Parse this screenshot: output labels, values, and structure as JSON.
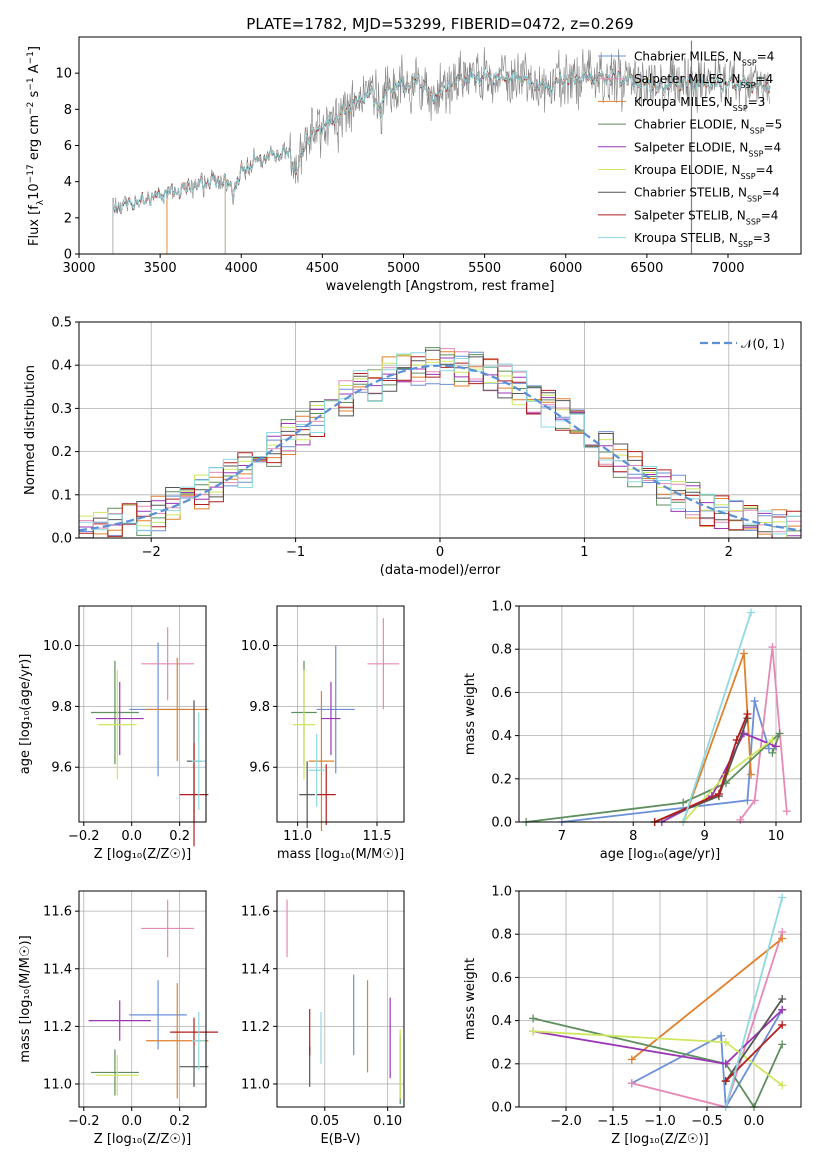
{
  "figure": {
    "title": "PLATE=1782, MJD=53299, FIBERID=0472, z=0.269"
  },
  "colors": {
    "Chabrier MILES": "#6b8fd9",
    "Salpeter MILES": "#e589b7",
    "Kroupa MILES": "#e0802c",
    "Chabrier ELODIE": "#5f8e5f",
    "Salpeter ELODIE": "#9b36b5",
    "Kroupa ELODIE": "#cde85f",
    "Chabrier STELIB": "#555555",
    "Salpeter STELIB": "#b21e1e",
    "Kroupa STELIB": "#8fd9e0",
    "data": "#808080",
    "gauss": "#5b8fd6"
  },
  "chart_data": [
    {
      "type": "line",
      "xlabel": "wavelength [Angstrom, rest frame]",
      "ylabel": "Flux [f_λ10⁻¹⁷ erg cm⁻² s⁻¹ A⁻¹]",
      "xlim": [
        3000,
        7450
      ],
      "ylim": [
        0,
        12
      ],
      "xticks": [
        "3000",
        "3500",
        "4000",
        "4500",
        "5000",
        "5500",
        "6000",
        "6500",
        "7000"
      ],
      "yticks": [
        "0",
        "2",
        "4",
        "6",
        "8",
        "10"
      ],
      "legend_position": "top-right",
      "series_labels": [
        {
          "name": "Chabrier MILES",
          "imf": "Chabrier",
          "lib": "MILES",
          "n": "4"
        },
        {
          "name": "Salpeter MILES",
          "imf": "Salpeter",
          "lib": "MILES",
          "n": "4"
        },
        {
          "name": "Kroupa MILES",
          "imf": "Kroupa",
          "lib": "MILES",
          "n": "3"
        },
        {
          "name": "Chabrier ELODIE",
          "imf": "Chabrier",
          "lib": "ELODIE",
          "n": "5"
        },
        {
          "name": "Salpeter ELODIE",
          "imf": "Salpeter",
          "lib": "ELODIE",
          "n": "4"
        },
        {
          "name": "Kroupa ELODIE",
          "imf": "Kroupa",
          "lib": "ELODIE",
          "n": "4"
        },
        {
          "name": "Chabrier STELIB",
          "imf": "Chabrier",
          "lib": "STELIB",
          "n": "4"
        },
        {
          "name": "Salpeter STELIB",
          "imf": "Salpeter",
          "lib": "STELIB",
          "n": "4"
        },
        {
          "name": "Kroupa STELIB",
          "imf": "Kroupa",
          "lib": "STELIB",
          "n": "3"
        }
      ],
      "model_start_wavelength": {
        "MILES": 3540,
        "ELODIE": 3900,
        "STELIB": 3210
      },
      "spectrum_envelope": [
        [
          3210,
          2.6
        ],
        [
          3400,
          3.0
        ],
        [
          3540,
          3.3
        ],
        [
          3700,
          3.8
        ],
        [
          3900,
          4.1
        ],
        [
          3950,
          3.4
        ],
        [
          4000,
          4.6
        ],
        [
          4100,
          5.2
        ],
        [
          4200,
          5.5
        ],
        [
          4300,
          5.6
        ],
        [
          4340,
          4.4
        ],
        [
          4400,
          6.4
        ],
        [
          4500,
          7.0
        ],
        [
          4600,
          7.7
        ],
        [
          4700,
          8.4
        ],
        [
          4800,
          8.9
        ],
        [
          4860,
          7.9
        ],
        [
          4900,
          9.2
        ],
        [
          5000,
          9.3
        ],
        [
          5100,
          9.6
        ],
        [
          5175,
          8.6
        ],
        [
          5300,
          9.6
        ],
        [
          5500,
          9.8
        ],
        [
          5700,
          9.8
        ],
        [
          5890,
          9.2
        ],
        [
          6000,
          9.7
        ],
        [
          6300,
          9.8
        ],
        [
          6560,
          9.2
        ],
        [
          6700,
          9.5
        ],
        [
          6900,
          9.4
        ],
        [
          7100,
          9.4
        ],
        [
          7260,
          9.3
        ]
      ]
    },
    {
      "type": "line",
      "xlabel": "(data-model)/error",
      "ylabel": "Normed distribution",
      "xlim": [
        -2.5,
        2.5
      ],
      "ylim": [
        0,
        0.5
      ],
      "xticks": [
        "−2",
        "−1",
        "0",
        "1",
        "2"
      ],
      "yticks": [
        "0.0",
        "0.1",
        "0.2",
        "0.3",
        "0.4",
        "0.5"
      ],
      "legend_position": "top-right",
      "legend_label": "𝒩(0, 1)",
      "gaussian": {
        "mu": 0,
        "sigma": 1
      },
      "histogram_bin_width": 0.1
    },
    {
      "type": "scatter",
      "xlabel": "Z [log₁₀(Z/Z☉)]",
      "ylabel": "age  [log₁₀(age/yr)]",
      "xlim": [
        -0.22,
        0.31
      ],
      "ylim": [
        9.42,
        10.13
      ],
      "xticks": [
        "−0.2",
        "0.0",
        "0.2"
      ],
      "yticks": [
        "9.6",
        "9.8",
        "10.0"
      ],
      "points": [
        {
          "model": "Chabrier MILES",
          "x": 0.11,
          "y": 9.79,
          "xerr": 0.12,
          "yerr": 0.22
        },
        {
          "model": "Salpeter MILES",
          "x": 0.15,
          "y": 9.94,
          "xerr": 0.11,
          "yerr": 0.12
        },
        {
          "model": "Kroupa MILES",
          "x": 0.19,
          "y": 9.79,
          "xerr": 0.13,
          "yerr": 0.17
        },
        {
          "model": "Chabrier ELODIE",
          "x": -0.07,
          "y": 9.78,
          "xerr": 0.1,
          "yerr": 0.17
        },
        {
          "model": "Salpeter ELODIE",
          "x": -0.05,
          "y": 9.76,
          "xerr": 0.1,
          "yerr": 0.12
        },
        {
          "model": "Kroupa ELODIE",
          "x": -0.06,
          "y": 9.74,
          "xerr": 0.08,
          "yerr": 0.18
        },
        {
          "model": "Chabrier STELIB",
          "x": 0.26,
          "y": 9.62,
          "xerr": 0.03,
          "yerr": 0.2
        },
        {
          "model": "Salpeter STELIB",
          "x": 0.26,
          "y": 9.51,
          "xerr": 0.06,
          "yerr": 0.17
        },
        {
          "model": "Kroupa STELIB",
          "x": 0.28,
          "y": 9.62,
          "xerr": 0.03,
          "yerr": 0.16
        }
      ]
    },
    {
      "type": "scatter",
      "xlabel": "mass [log₁₀(M/M☉)]",
      "ylabel": "",
      "xlim": [
        10.87,
        11.67
      ],
      "ylim": [
        9.42,
        10.13
      ],
      "xticks": [
        "11.0",
        "11.5"
      ],
      "yticks": [
        "9.6",
        "9.8",
        "10.0"
      ],
      "points": [
        {
          "model": "Chabrier MILES",
          "x": 11.24,
          "y": 9.79,
          "xerr": 0.12,
          "yerr": 0.21
        },
        {
          "model": "Salpeter MILES",
          "x": 11.54,
          "y": 9.94,
          "xerr": 0.1,
          "yerr": 0.15
        },
        {
          "model": "Kroupa MILES",
          "x": 11.15,
          "y": 9.62,
          "xerr": 0.08,
          "yerr": 0.23
        },
        {
          "model": "Chabrier ELODIE",
          "x": 11.04,
          "y": 9.78,
          "xerr": 0.08,
          "yerr": 0.17
        },
        {
          "model": "Salpeter ELODIE",
          "x": 11.21,
          "y": 9.76,
          "xerr": 0.06,
          "yerr": 0.12
        },
        {
          "model": "Kroupa ELODIE",
          "x": 11.04,
          "y": 9.74,
          "xerr": 0.07,
          "yerr": 0.18
        },
        {
          "model": "Chabrier STELIB",
          "x": 11.06,
          "y": 9.51,
          "xerr": 0.05,
          "yerr": 0.11
        },
        {
          "model": "Salpeter STELIB",
          "x": 11.18,
          "y": 9.51,
          "xerr": 0.06,
          "yerr": 0.1
        },
        {
          "model": "Kroupa STELIB",
          "x": 11.12,
          "y": 9.59,
          "xerr": 0.05,
          "yerr": 0.12
        }
      ]
    },
    {
      "type": "line",
      "xlabel": "age  [log₁₀(age/yr)]",
      "ylabel": "mass weight",
      "xlim": [
        6.4,
        10.35
      ],
      "ylim": [
        0,
        1
      ],
      "xticks": [
        "7",
        "8",
        "9",
        "10"
      ],
      "yticks": [
        "0.0",
        "0.2",
        "0.4",
        "0.6",
        "0.8",
        "1.0"
      ],
      "series": [
        {
          "name": "Chabrier MILES",
          "points": [
            [
              7.0,
              0.0
            ],
            [
              9.6,
              0.1
            ],
            [
              9.7,
              0.56
            ],
            [
              9.9,
              0.34
            ]
          ]
        },
        {
          "name": "Salpeter MILES",
          "points": [
            [
              9.5,
              0.01
            ],
            [
              9.7,
              0.1
            ],
            [
              9.95,
              0.81
            ],
            [
              10.15,
              0.05
            ]
          ]
        },
        {
          "name": "Kroupa MILES",
          "points": [
            [
              8.7,
              0.0
            ],
            [
              9.55,
              0.78
            ],
            [
              9.65,
              0.22
            ]
          ]
        },
        {
          "name": "Chabrier ELODIE",
          "points": [
            [
              6.5,
              0.0
            ],
            [
              8.7,
              0.09
            ],
            [
              9.3,
              0.18
            ],
            [
              10.05,
              0.41
            ],
            [
              9.95,
              0.32
            ]
          ]
        },
        {
          "name": "Salpeter ELODIE",
          "points": [
            [
              8.4,
              0.0
            ],
            [
              9.1,
              0.12
            ],
            [
              9.55,
              0.41
            ],
            [
              10.0,
              0.35
            ]
          ]
        },
        {
          "name": "Kroupa ELODIE",
          "points": [
            [
              8.7,
              0.0
            ],
            [
              9.3,
              0.22
            ],
            [
              9.95,
              0.38
            ]
          ]
        },
        {
          "name": "Chabrier STELIB",
          "points": [
            [
              8.3,
              0.0
            ],
            [
              9.2,
              0.12
            ],
            [
              9.6,
              0.48
            ]
          ]
        },
        {
          "name": "Salpeter STELIB",
          "points": [
            [
              8.3,
              0.0
            ],
            [
              9.2,
              0.13
            ],
            [
              9.45,
              0.38
            ],
            [
              9.6,
              0.5
            ]
          ]
        },
        {
          "name": "Kroupa STELIB",
          "points": [
            [
              8.7,
              0.0
            ],
            [
              9.65,
              0.97
            ]
          ]
        }
      ]
    },
    {
      "type": "scatter",
      "xlabel": "Z [log₁₀(Z/Z☉)]",
      "ylabel": "mass [log₁₀(M/M☉)]",
      "xlim": [
        -0.22,
        0.31
      ],
      "ylim": [
        10.92,
        11.67
      ],
      "xticks": [
        "−0.2",
        "0.0",
        "0.2"
      ],
      "yticks": [
        "11.0",
        "11.2",
        "11.4",
        "11.6"
      ],
      "points": [
        {
          "model": "Chabrier MILES",
          "x": 0.11,
          "y": 11.24,
          "xerr": 0.12,
          "yerr": 0.12
        },
        {
          "model": "Salpeter MILES",
          "x": 0.15,
          "y": 11.54,
          "xerr": 0.11,
          "yerr": 0.1
        },
        {
          "model": "Kroupa MILES",
          "x": 0.19,
          "y": 11.15,
          "xerr": 0.13,
          "yerr": 0.2
        },
        {
          "model": "Chabrier ELODIE",
          "x": -0.07,
          "y": 11.04,
          "xerr": 0.1,
          "yerr": 0.08
        },
        {
          "model": "Salpeter ELODIE",
          "x": -0.05,
          "y": 11.22,
          "xerr": 0.13,
          "yerr": 0.07
        },
        {
          "model": "Kroupa ELODIE",
          "x": -0.06,
          "y": 11.03,
          "xerr": 0.09,
          "yerr": 0.07
        },
        {
          "model": "Chabrier STELIB",
          "x": 0.26,
          "y": 11.06,
          "xerr": 0.06,
          "yerr": 0.07
        },
        {
          "model": "Salpeter STELIB",
          "x": 0.26,
          "y": 11.18,
          "xerr": 0.1,
          "yerr": 0.05
        },
        {
          "model": "Kroupa STELIB",
          "x": 0.28,
          "y": 11.15,
          "xerr": 0.03,
          "yerr": 0.1
        }
      ]
    },
    {
      "type": "scatter",
      "xlabel": "E(B-V)",
      "ylabel": "",
      "xlim": [
        0.012,
        0.113
      ],
      "ylim": [
        10.92,
        11.67
      ],
      "xticks": [
        "0.05",
        "0.10"
      ],
      "yticks": [
        "11.0",
        "11.2",
        "11.4",
        "11.6"
      ],
      "points": [
        {
          "model": "Chabrier MILES",
          "x": 0.073,
          "y": 11.24,
          "yerr": 0.14
        },
        {
          "model": "Salpeter MILES",
          "x": 0.02,
          "y": 11.54,
          "yerr": 0.1
        },
        {
          "model": "Kroupa MILES",
          "x": 0.084,
          "y": 11.2,
          "yerr": 0.16
        },
        {
          "model": "Chabrier ELODIE",
          "x": 0.11,
          "y": 11.05,
          "yerr": 0.12
        },
        {
          "model": "Salpeter ELODIE",
          "x": 0.102,
          "y": 11.16,
          "yerr": 0.14
        },
        {
          "model": "Kroupa ELODIE",
          "x": 0.11,
          "y": 11.07,
          "yerr": 0.12
        },
        {
          "model": "Chabrier STELIB",
          "x": 0.038,
          "y": 11.06,
          "yerr": 0.07
        },
        {
          "model": "Salpeter STELIB",
          "x": 0.038,
          "y": 11.18,
          "yerr": 0.08
        },
        {
          "model": "Kroupa STELIB",
          "x": 0.047,
          "y": 11.16,
          "yerr": 0.09
        }
      ]
    },
    {
      "type": "line",
      "xlabel": "Z [log₁₀(Z/Z☉)]",
      "ylabel": "mass weight",
      "xlim": [
        -2.5,
        0.5
      ],
      "ylim": [
        0,
        1
      ],
      "xticks": [
        "−2.0",
        "−1.5",
        "−1.0",
        "−0.5",
        "0.0"
      ],
      "yticks": [
        "0.0",
        "0.2",
        "0.4",
        "0.6",
        "0.8",
        "1.0"
      ],
      "series": [
        {
          "name": "Chabrier MILES",
          "points": [
            [
              -1.3,
              0.11
            ],
            [
              -0.35,
              0.33
            ],
            [
              -0.3,
              0.0
            ],
            [
              0.3,
              0.45
            ]
          ]
        },
        {
          "name": "Salpeter MILES",
          "points": [
            [
              -1.3,
              0.11
            ],
            [
              -0.3,
              0.0
            ],
            [
              0.3,
              0.81
            ]
          ]
        },
        {
          "name": "Kroupa MILES",
          "points": [
            [
              -1.3,
              0.22
            ],
            [
              0.3,
              0.78
            ]
          ]
        },
        {
          "name": "Chabrier ELODIE",
          "points": [
            [
              -2.35,
              0.41
            ],
            [
              -0.3,
              0.2
            ],
            [
              0.0,
              0.0
            ],
            [
              0.3,
              0.29
            ]
          ]
        },
        {
          "name": "Salpeter ELODIE",
          "points": [
            [
              -2.35,
              0.35
            ],
            [
              -0.3,
              0.2
            ],
            [
              0.3,
              0.45
            ]
          ]
        },
        {
          "name": "Kroupa ELODIE",
          "points": [
            [
              -2.35,
              0.35
            ],
            [
              -0.3,
              0.3
            ],
            [
              0.3,
              0.1
            ]
          ]
        },
        {
          "name": "Chabrier STELIB",
          "points": [
            [
              -0.3,
              0.12
            ],
            [
              0.3,
              0.5
            ]
          ]
        },
        {
          "name": "Salpeter STELIB",
          "points": [
            [
              -0.3,
              0.12
            ],
            [
              0.3,
              0.38
            ]
          ]
        },
        {
          "name": "Kroupa STELIB",
          "points": [
            [
              -0.3,
              0.0
            ],
            [
              0.3,
              0.97
            ]
          ]
        }
      ]
    }
  ]
}
